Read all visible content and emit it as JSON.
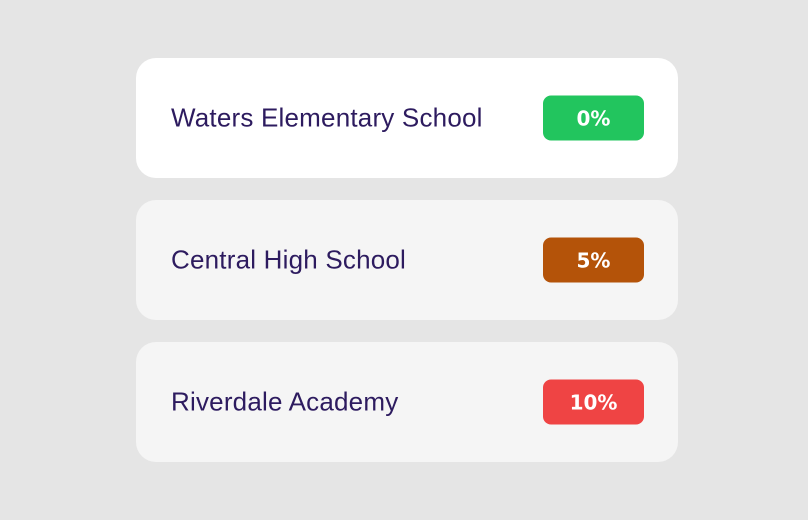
{
  "schools": [
    {
      "name": "Waters Elementary School",
      "badge": "0%",
      "badge_color": "#22c55e",
      "card_bg": "#ffffff"
    },
    {
      "name": "Central High School",
      "badge": "5%",
      "badge_color": "#b45309",
      "card_bg": "#f5f5f5"
    },
    {
      "name": "Riverdale Academy",
      "badge": "10%",
      "badge_color": "#ef4444",
      "card_bg": "#f5f5f5"
    }
  ]
}
